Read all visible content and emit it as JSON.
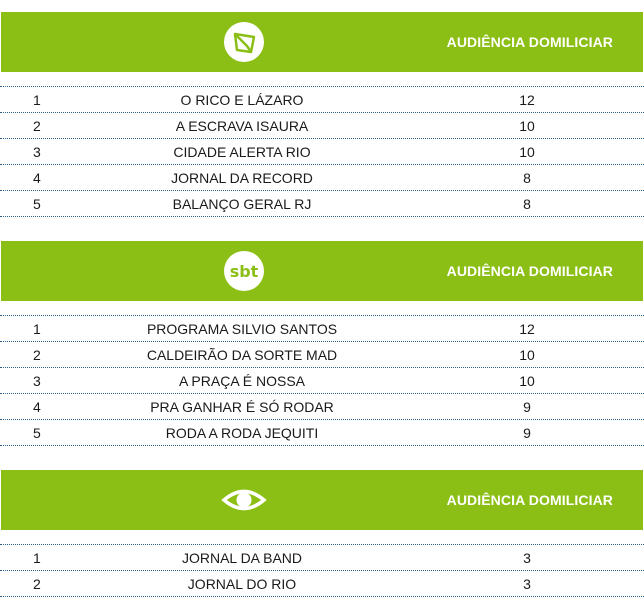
{
  "sections": [
    {
      "logo_icon": "record-tv-logo-icon",
      "header_label": "AUDIÊNCIA DOMILICIAR",
      "rows": [
        {
          "rank": "1",
          "program": "O RICO E LÁZARO",
          "share": "12"
        },
        {
          "rank": "2",
          "program": "A ESCRAVA ISAURA",
          "share": "10"
        },
        {
          "rank": "3",
          "program": "CIDADE ALERTA RIO",
          "share": "10"
        },
        {
          "rank": "4",
          "program": "JORNAL DA RECORD",
          "share": "8"
        },
        {
          "rank": "5",
          "program": "BALANÇO GERAL RJ",
          "share": "8"
        }
      ]
    },
    {
      "logo_icon": "sbt-logo-icon",
      "logo_text": "sbt",
      "header_label": "AUDIÊNCIA DOMILICIAR",
      "rows": [
        {
          "rank": "1",
          "program": "PROGRAMA SILVIO SANTOS",
          "share": "12"
        },
        {
          "rank": "2",
          "program": "CALDEIRÃO DA SORTE MAD",
          "share": "10"
        },
        {
          "rank": "3",
          "program": "A PRAÇA É NOSSA",
          "share": "10"
        },
        {
          "rank": "4",
          "program": "PRA GANHAR É SÓ RODAR",
          "share": "9"
        },
        {
          "rank": "5",
          "program": "RODA A RODA JEQUITI",
          "share": "9"
        }
      ]
    },
    {
      "logo_icon": "band-eye-logo-icon",
      "header_label": "AUDIÊNCIA DOMILICIAR",
      "rows": [
        {
          "rank": "1",
          "program": "JORNAL DA BAND",
          "share": "3"
        },
        {
          "rank": "2",
          "program": "JORNAL DO RIO",
          "share": "3"
        }
      ]
    }
  ],
  "colors": {
    "header_green": "#8cbf16",
    "divider_blue": "#2c5f8a",
    "text": "#1a1a1a"
  }
}
